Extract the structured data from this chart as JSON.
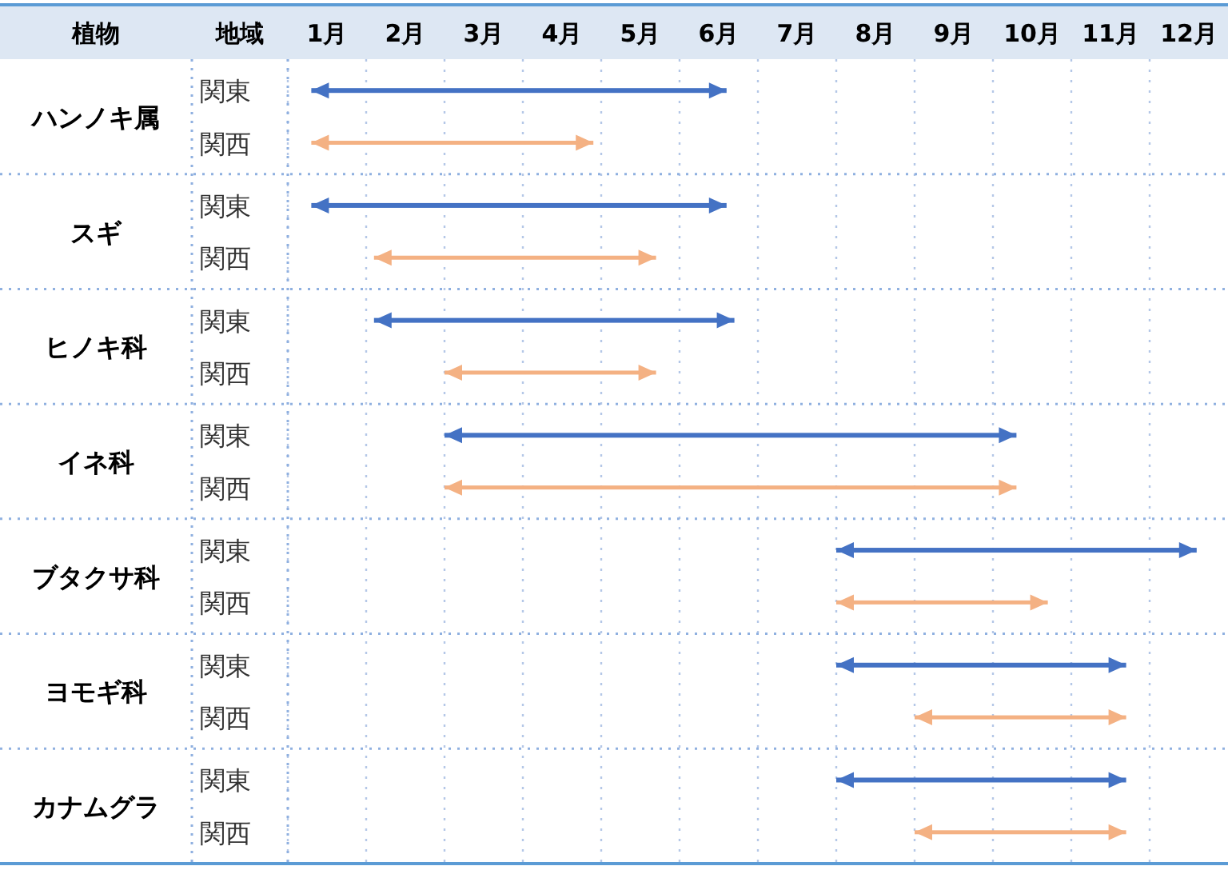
{
  "chart_data": {
    "type": "bar",
    "orientation": "horizontal",
    "ylabel": "植物",
    "legend_title": "地域",
    "categories": [
      "ハンノキ属",
      "スギ",
      "ヒノキ科",
      "イネ科",
      "ブタクサ科",
      "ヨモギ科",
      "カナムグラ"
    ],
    "series": [
      {
        "name": "関東",
        "color": "#4472c4",
        "base": [
          1.3,
          1.3,
          2.1,
          3.0,
          8.0,
          8.0,
          8.0
        ],
        "values": [
          5.3,
          5.3,
          4.6,
          7.3,
          4.6,
          3.7,
          3.7
        ]
      },
      {
        "name": "関西",
        "color": "#f4b183",
        "base": [
          1.3,
          2.1,
          3.0,
          3.0,
          8.0,
          9.0,
          9.0
        ],
        "values": [
          3.6,
          3.6,
          2.7,
          7.3,
          2.7,
          2.7,
          2.7
        ]
      }
    ],
    "xlim": [
      1,
      13
    ],
    "xticks": [
      {
        "value": 1,
        "label": null
      },
      {
        "value": 1.5,
        "label": "1月"
      },
      {
        "value": 2,
        "label": null
      },
      {
        "value": 2.5,
        "label": "2月"
      },
      {
        "value": 3,
        "label": null
      },
      {
        "value": 3.5,
        "label": "3月"
      },
      {
        "value": 4,
        "label": null
      },
      {
        "value": 4.5,
        "label": "4月"
      },
      {
        "value": 5,
        "label": null
      },
      {
        "value": 5.5,
        "label": "5月"
      },
      {
        "value": 6,
        "label": null
      },
      {
        "value": 6.5,
        "label": "6月"
      },
      {
        "value": 7,
        "label": null
      },
      {
        "value": 7.5,
        "label": "7月"
      },
      {
        "value": 8,
        "label": null
      },
      {
        "value": 8.5,
        "label": "8月"
      },
      {
        "value": 9,
        "label": null
      },
      {
        "value": 9.5,
        "label": "9月"
      },
      {
        "value": 10,
        "label": null
      },
      {
        "value": 10.5,
        "label": "10月"
      },
      {
        "value": 11,
        "label": null
      },
      {
        "value": 11.5,
        "label": "11月"
      },
      {
        "value": 12,
        "label": null
      },
      {
        "value": 12.5,
        "label": "12月"
      }
    ],
    "grid": true,
    "legend": "left"
  }
}
